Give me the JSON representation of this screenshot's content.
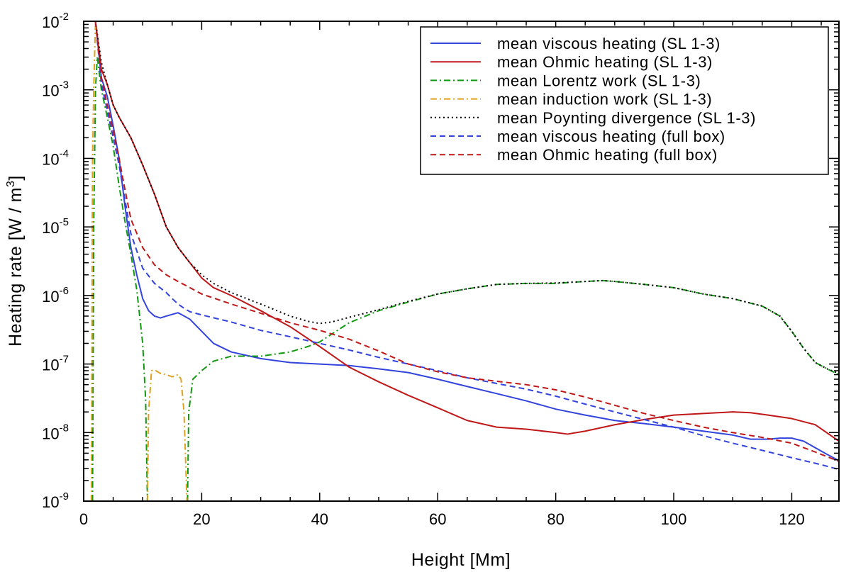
{
  "chart_data": {
    "type": "line",
    "title": "",
    "xlabel": "Height [Mm]",
    "ylabel_main": "Heating rate [W / m",
    "ylabel_sup": "3",
    "ylabel_close": "]",
    "xlim": [
      0,
      128
    ],
    "ylim_exponents": [
      -9,
      -2
    ],
    "yscale": "log",
    "x_ticks": [
      0,
      20,
      40,
      60,
      80,
      100,
      120
    ],
    "x_tick_labels": [
      "0",
      "20",
      "40",
      "60",
      "80",
      "100",
      "120"
    ],
    "y_tick_exponents": [
      -9,
      -8,
      -7,
      -6,
      -5,
      -4,
      -3,
      -2
    ],
    "y_tick_base": "10",
    "y_tick_sups": [
      "-9",
      "-8",
      "-7",
      "-6",
      "-5",
      "-4",
      "-3",
      "-2"
    ],
    "legend_position": "top-right",
    "series": [
      {
        "name": "mean viscous heating (SL 1-3)",
        "color": "#3344dd",
        "style": "solid",
        "points": [
          [
            2,
            0.01
          ],
          [
            3,
            0.0015
          ],
          [
            4,
            0.0008
          ],
          [
            5,
            0.0003
          ],
          [
            6,
            0.0001
          ],
          [
            7,
            2e-05
          ],
          [
            8,
            5e-06
          ],
          [
            9,
            2e-06
          ],
          [
            10,
            9e-07
          ],
          [
            11,
            6e-07
          ],
          [
            12,
            5e-07
          ],
          [
            13,
            4.7e-07
          ],
          [
            14,
            5e-07
          ],
          [
            16,
            5.6e-07
          ],
          [
            18,
            4.5e-07
          ],
          [
            20,
            3e-07
          ],
          [
            22,
            2e-07
          ],
          [
            25,
            1.5e-07
          ],
          [
            30,
            1.2e-07
          ],
          [
            35,
            1.05e-07
          ],
          [
            40,
            1e-07
          ],
          [
            45,
            9.5e-08
          ],
          [
            50,
            8.5e-08
          ],
          [
            55,
            7.5e-08
          ],
          [
            60,
            6e-08
          ],
          [
            65,
            4.7e-08
          ],
          [
            70,
            3.7e-08
          ],
          [
            75,
            2.9e-08
          ],
          [
            80,
            2.2e-08
          ],
          [
            85,
            1.8e-08
          ],
          [
            90,
            1.5e-08
          ],
          [
            95,
            1.35e-08
          ],
          [
            100,
            1.2e-08
          ],
          [
            105,
            1.05e-08
          ],
          [
            110,
            9.2e-09
          ],
          [
            113,
            8e-09
          ],
          [
            116,
            8e-09
          ],
          [
            118,
            8.3e-09
          ],
          [
            120,
            8.3e-09
          ],
          [
            122,
            7.5e-09
          ],
          [
            124,
            6e-09
          ],
          [
            126,
            4.8e-09
          ],
          [
            128,
            3.9e-09
          ]
        ]
      },
      {
        "name": "mean Ohmic heating (SL 1-3)",
        "color": "#c01818",
        "style": "solid",
        "points": [
          [
            2,
            0.01
          ],
          [
            3,
            0.002
          ],
          [
            4,
            0.0012
          ],
          [
            5,
            0.0006
          ],
          [
            6,
            0.0004
          ],
          [
            8,
            0.0002
          ],
          [
            10,
            8e-05
          ],
          [
            12,
            3e-05
          ],
          [
            14,
            1e-05
          ],
          [
            16,
            5e-06
          ],
          [
            18,
            3e-06
          ],
          [
            20,
            1.8e-06
          ],
          [
            22,
            1.3e-06
          ],
          [
            25,
            1e-06
          ],
          [
            30,
            6e-07
          ],
          [
            35,
            3.5e-07
          ],
          [
            40,
            1.8e-07
          ],
          [
            45,
            9e-08
          ],
          [
            50,
            5.5e-08
          ],
          [
            55,
            3.5e-08
          ],
          [
            60,
            2.3e-08
          ],
          [
            65,
            1.5e-08
          ],
          [
            70,
            1.2e-08
          ],
          [
            75,
            1.12e-08
          ],
          [
            80,
            1e-08
          ],
          [
            82,
            9.5e-09
          ],
          [
            85,
            1.05e-08
          ],
          [
            90,
            1.3e-08
          ],
          [
            95,
            1.55e-08
          ],
          [
            100,
            1.8e-08
          ],
          [
            105,
            1.9e-08
          ],
          [
            110,
            2e-08
          ],
          [
            113,
            1.95e-08
          ],
          [
            116,
            1.8e-08
          ],
          [
            120,
            1.6e-08
          ],
          [
            124,
            1.3e-08
          ],
          [
            128,
            7.5e-09
          ]
        ]
      },
      {
        "name": "mean Lorentz work (SL 1-3)",
        "color": "#119911",
        "style": "dashdot",
        "points": [
          [
            1.5,
            1e-09
          ],
          [
            1.7,
            1e-05
          ],
          [
            2,
            0.001
          ],
          [
            2.3,
            0.003
          ],
          [
            3,
            0.001
          ],
          [
            4,
            0.0004
          ],
          [
            5,
            0.00015
          ],
          [
            6,
            4e-05
          ],
          [
            7,
            1.2e-05
          ],
          [
            8,
            4e-06
          ],
          [
            9,
            1.2e-06
          ],
          [
            10,
            2e-07
          ],
          [
            10.5,
            3e-08
          ],
          [
            10.8,
            1e-09
          ]
        ]
      },
      {
        "name": "_lorentz_segment_2",
        "color": "#119911",
        "style": "dashdot",
        "points": [
          [
            17.6,
            1e-09
          ],
          [
            17.8,
            2e-08
          ],
          [
            18.5,
            6e-08
          ],
          [
            20,
            8e-08
          ],
          [
            22,
            1.1e-07
          ],
          [
            25,
            1.3e-07
          ],
          [
            30,
            1.3e-07
          ],
          [
            35,
            1.5e-07
          ],
          [
            38,
            1.8e-07
          ],
          [
            40,
            2.1e-07
          ],
          [
            45,
            4e-07
          ],
          [
            50,
            6e-07
          ],
          [
            55,
            8e-07
          ],
          [
            60,
            1.05e-06
          ],
          [
            65,
            1.25e-06
          ],
          [
            70,
            1.45e-06
          ],
          [
            75,
            1.5e-06
          ],
          [
            80,
            1.5e-06
          ],
          [
            85,
            1.6e-06
          ],
          [
            88,
            1.65e-06
          ],
          [
            90,
            1.6e-06
          ],
          [
            95,
            1.45e-06
          ],
          [
            100,
            1.3e-06
          ],
          [
            105,
            1.05e-06
          ],
          [
            110,
            9e-07
          ],
          [
            115,
            7e-07
          ],
          [
            118,
            5e-07
          ],
          [
            120,
            3e-07
          ],
          [
            122,
            1.7e-07
          ],
          [
            124,
            1.05e-07
          ],
          [
            126,
            8.5e-08
          ],
          [
            128,
            7e-08
          ]
        ]
      },
      {
        "name": "mean induction work (SL 1-3)",
        "color": "#e0a020",
        "style": "dashdot",
        "points": [
          [
            1.3,
            1e-09
          ],
          [
            1.5,
            0.0001
          ],
          [
            1.7,
            0.001
          ],
          [
            2,
            0.01
          ]
        ]
      },
      {
        "name": "_induction_segment_2",
        "color": "#e0a020",
        "style": "dashdot",
        "points": [
          [
            10.8,
            1e-09
          ],
          [
            11,
            2e-08
          ],
          [
            11.5,
            8e-08
          ],
          [
            12,
            8.2e-08
          ],
          [
            13,
            7.3e-08
          ],
          [
            14,
            7e-08
          ],
          [
            15,
            6.5e-08
          ],
          [
            16,
            7e-08
          ],
          [
            16.5,
            6e-08
          ],
          [
            17,
            2e-08
          ],
          [
            17.5,
            1e-09
          ]
        ]
      },
      {
        "name": "mean Poynting divergence (SL 1-3)",
        "color": "#000000",
        "style": "dotted",
        "points": [
          [
            2,
            0.01
          ],
          [
            3,
            0.0025
          ],
          [
            4,
            0.0012
          ],
          [
            5,
            0.0006
          ],
          [
            6,
            0.0004
          ],
          [
            8,
            0.0002
          ],
          [
            10,
            8e-05
          ],
          [
            12,
            3e-05
          ],
          [
            14,
            1e-05
          ],
          [
            16,
            5e-06
          ],
          [
            18,
            3e-06
          ],
          [
            20,
            2e-06
          ],
          [
            22,
            1.5e-06
          ],
          [
            25,
            1.1e-06
          ],
          [
            30,
            7.5e-07
          ],
          [
            35,
            5e-07
          ],
          [
            38,
            4.2e-07
          ],
          [
            40,
            3.9e-07
          ],
          [
            42,
            4.1e-07
          ],
          [
            45,
            4.8e-07
          ],
          [
            50,
            6.2e-07
          ],
          [
            55,
            8.2e-07
          ],
          [
            60,
            1.05e-06
          ],
          [
            65,
            1.25e-06
          ],
          [
            70,
            1.45e-06
          ],
          [
            75,
            1.5e-06
          ],
          [
            80,
            1.52e-06
          ],
          [
            85,
            1.6e-06
          ],
          [
            88,
            1.65e-06
          ],
          [
            90,
            1.6e-06
          ],
          [
            95,
            1.45e-06
          ],
          [
            100,
            1.3e-06
          ],
          [
            105,
            1.05e-06
          ],
          [
            110,
            9e-07
          ],
          [
            115,
            7e-07
          ],
          [
            118,
            5e-07
          ],
          [
            120,
            3e-07
          ],
          [
            122,
            1.7e-07
          ],
          [
            124,
            1.05e-07
          ],
          [
            126,
            8.5e-08
          ],
          [
            128,
            7.3e-08
          ]
        ]
      },
      {
        "name": "mean viscous heating (full box)",
        "color": "#3344dd",
        "style": "dashed",
        "points": [
          [
            2,
            0.01
          ],
          [
            3,
            0.0012
          ],
          [
            4,
            0.0005
          ],
          [
            5,
            0.0002
          ],
          [
            6,
            8e-05
          ],
          [
            7,
            2.5e-05
          ],
          [
            8,
            8e-06
          ],
          [
            10,
            2.5e-06
          ],
          [
            12,
            1.5e-06
          ],
          [
            14,
            1.1e-06
          ],
          [
            15,
            9e-07
          ],
          [
            16,
            7.5e-07
          ],
          [
            17,
            6.5e-07
          ],
          [
            18,
            5.8e-07
          ],
          [
            20,
            5.2e-07
          ],
          [
            25,
            4.1e-07
          ],
          [
            30,
            3.1e-07
          ],
          [
            35,
            2.5e-07
          ],
          [
            40,
            2e-07
          ],
          [
            45,
            1.6e-07
          ],
          [
            50,
            1.25e-07
          ],
          [
            55,
            1e-07
          ],
          [
            60,
            8e-08
          ],
          [
            65,
            6.3e-08
          ],
          [
            70,
            5.2e-08
          ],
          [
            75,
            4.3e-08
          ],
          [
            80,
            3.4e-08
          ],
          [
            85,
            2.6e-08
          ],
          [
            90,
            2e-08
          ],
          [
            95,
            1.55e-08
          ],
          [
            100,
            1.2e-08
          ],
          [
            105,
            9e-09
          ],
          [
            110,
            7e-09
          ],
          [
            115,
            5.5e-09
          ],
          [
            120,
            4.3e-09
          ],
          [
            125,
            3.4e-09
          ],
          [
            128,
            2.9e-09
          ]
        ]
      },
      {
        "name": "mean Ohmic heating (full box)",
        "color": "#c01818",
        "style": "dashed",
        "points": [
          [
            2,
            0.01
          ],
          [
            3,
            0.0015
          ],
          [
            4,
            0.0006
          ],
          [
            5,
            0.00025
          ],
          [
            6,
            0.0001
          ],
          [
            7,
            3.5e-05
          ],
          [
            8,
            1.3e-05
          ],
          [
            10,
            5e-06
          ],
          [
            12,
            2.8e-06
          ],
          [
            14,
            2e-06
          ],
          [
            16,
            1.6e-06
          ],
          [
            18,
            1.3e-06
          ],
          [
            20,
            1.05e-06
          ],
          [
            25,
            7.5e-07
          ],
          [
            30,
            5.5e-07
          ],
          [
            35,
            4e-07
          ],
          [
            40,
            3.1e-07
          ],
          [
            45,
            2.3e-07
          ],
          [
            50,
            1.55e-07
          ],
          [
            55,
            1e-07
          ],
          [
            60,
            7.7e-08
          ],
          [
            65,
            6.3e-08
          ],
          [
            70,
            5.6e-08
          ],
          [
            75,
            5e-08
          ],
          [
            80,
            4.2e-08
          ],
          [
            85,
            3.3e-08
          ],
          [
            90,
            2.5e-08
          ],
          [
            95,
            1.9e-08
          ],
          [
            100,
            1.5e-08
          ],
          [
            105,
            1.2e-08
          ],
          [
            110,
            1e-08
          ],
          [
            115,
            8.5e-09
          ],
          [
            120,
            7e-09
          ],
          [
            124,
            5.2e-09
          ],
          [
            128,
            3.8e-09
          ]
        ]
      }
    ]
  }
}
